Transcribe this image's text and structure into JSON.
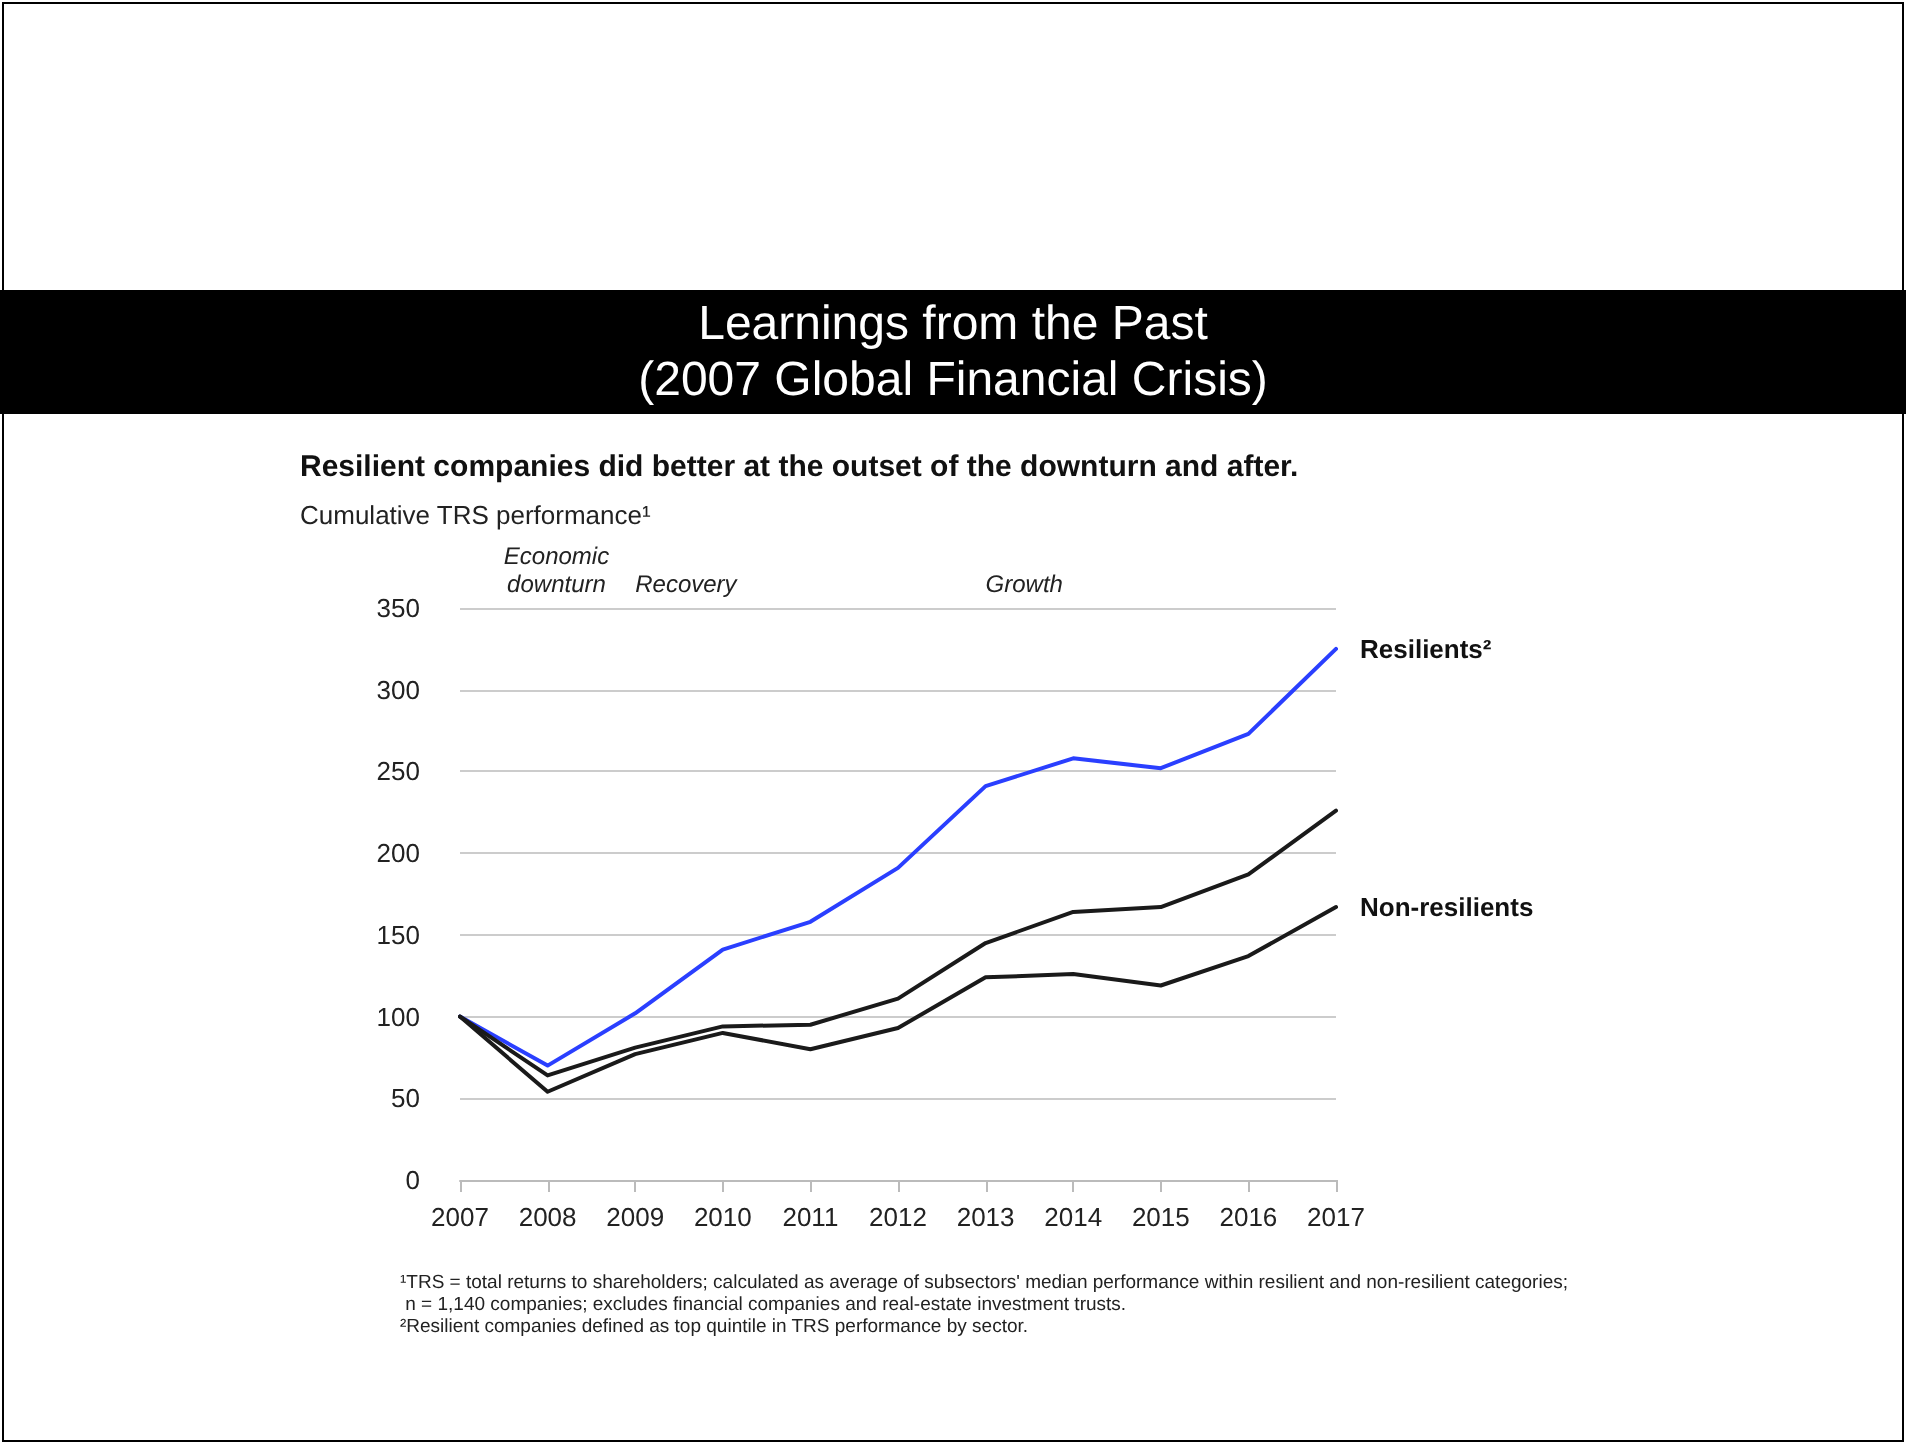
{
  "chart_data": {
    "type": "line",
    "title": "Learnings from the Past\n(2007 Global Financial Crisis)",
    "subtitle": "Resilient companies did better at the outset of the downturn and after.",
    "ylabel": "Cumulative TRS performance¹",
    "categories": [
      "2007",
      "2008",
      "2009",
      "2010",
      "2011",
      "2012",
      "2013",
      "2014",
      "2015",
      "2016",
      "2017"
    ],
    "series": [
      {
        "name": "Resilients²",
        "color": "#2a3fff",
        "values": [
          100,
          70,
          102,
          141,
          158,
          191,
          241,
          258,
          252,
          273,
          325
        ]
      },
      {
        "color": "#1a1a1a",
        "values": [
          100,
          64,
          81,
          94,
          95,
          111,
          145,
          164,
          167,
          187,
          226
        ]
      },
      {
        "name": "Non-resilients",
        "color": "#1a1a1a",
        "values": [
          100,
          54,
          77,
          90,
          80,
          93,
          124,
          126,
          119,
          137,
          167
        ]
      }
    ],
    "ylim": [
      0,
      350
    ],
    "yticks": [
      0,
      50,
      100,
      150,
      200,
      250,
      300,
      350
    ],
    "grid": "y",
    "legend": false,
    "marker": "none",
    "line_style": "solid",
    "annotations": [
      "Economic\ndownturn",
      "Recovery",
      "Growth",
      "¹TRS = total returns to shareholders; calculated as average of subsectors' median performance within resilient and non-resilient categories;\n n = 1,140 companies; excludes financial companies and real-estate investment trusts.\n²Resilient companies defined as top quintile in TRS performance by sector."
    ]
  }
}
